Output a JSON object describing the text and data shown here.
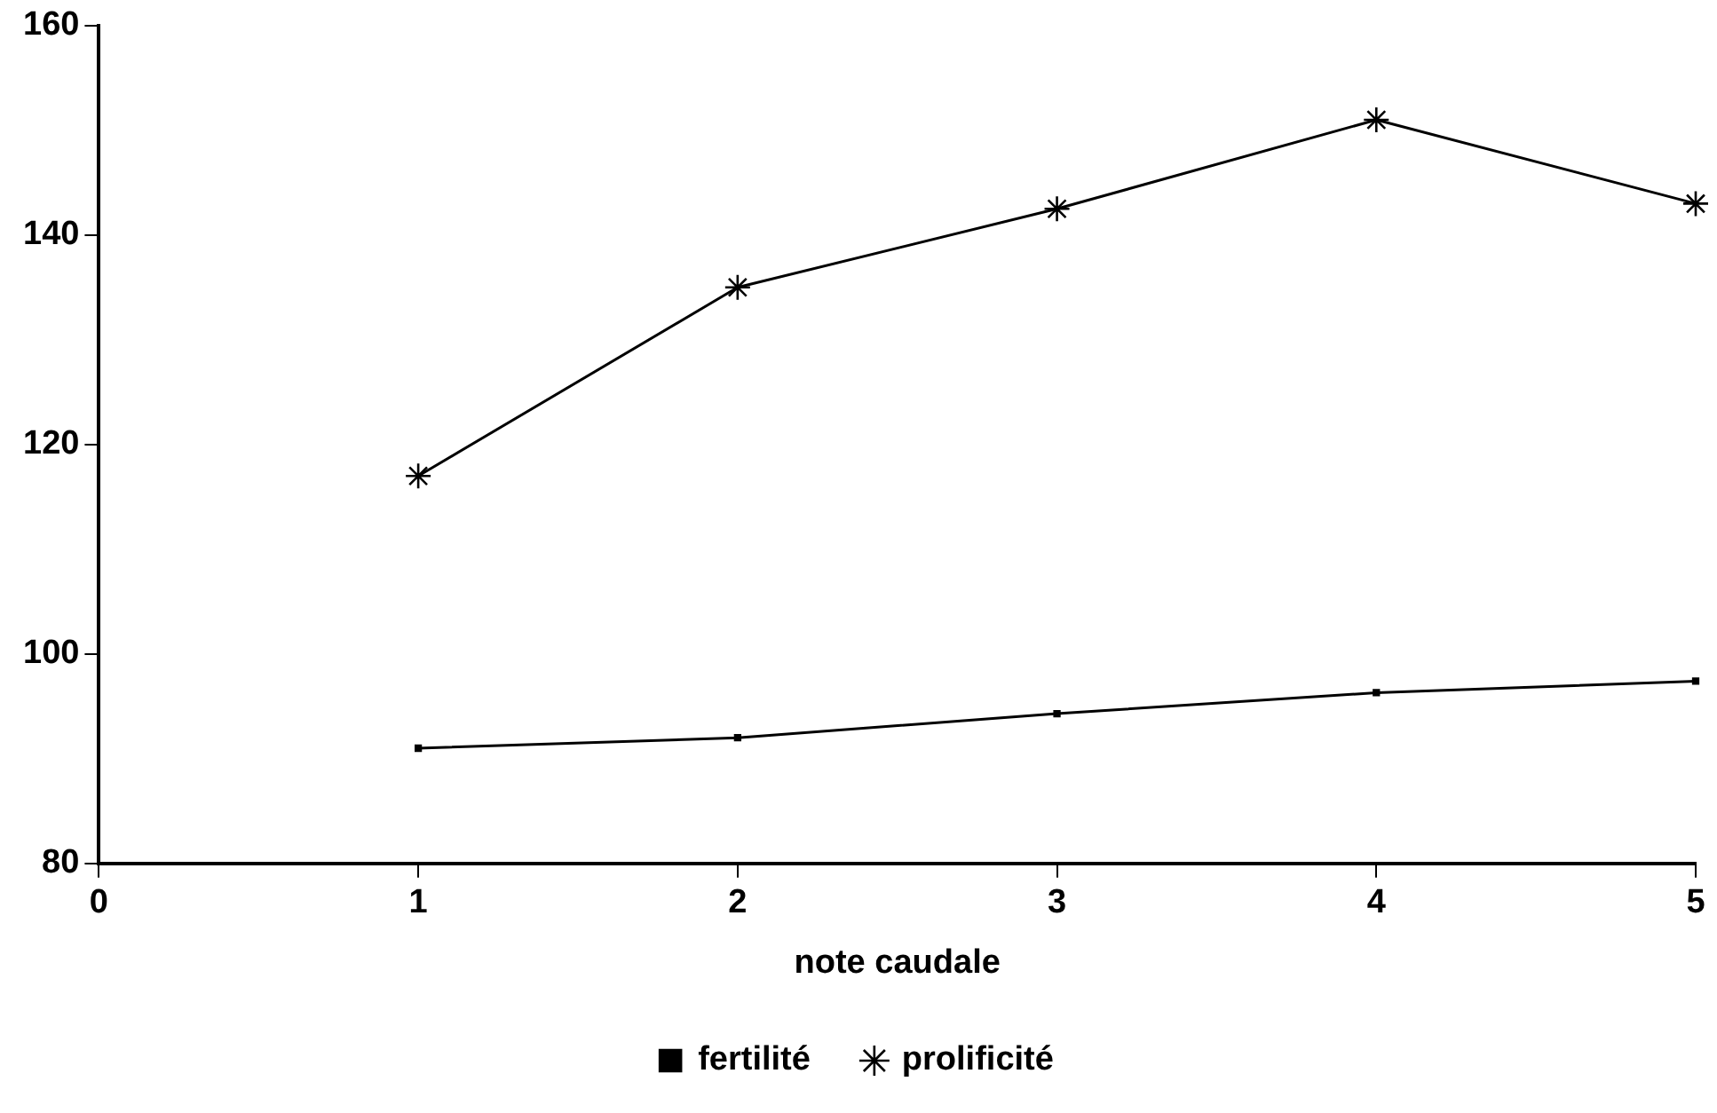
{
  "chart_data": {
    "type": "line",
    "xlabel": "note caudale",
    "x": [
      1,
      2,
      3,
      4,
      5
    ],
    "series": [
      {
        "name": "fertilité",
        "color": "#000000",
        "marker": "square",
        "values": [
          91,
          92,
          94.3,
          96.3,
          97.4
        ]
      },
      {
        "name": "prolificité",
        "color": "#000000",
        "marker": "cross",
        "values": [
          117,
          135,
          142.5,
          151,
          143
        ]
      }
    ],
    "xlim": [
      0,
      5
    ],
    "xticks": [
      0,
      1,
      2,
      3,
      4,
      5
    ],
    "ylim": [
      80,
      160
    ],
    "yticks": [
      80,
      100,
      120,
      140,
      160
    ],
    "grid": false,
    "legend": "bottom",
    "line_style": "solid"
  }
}
